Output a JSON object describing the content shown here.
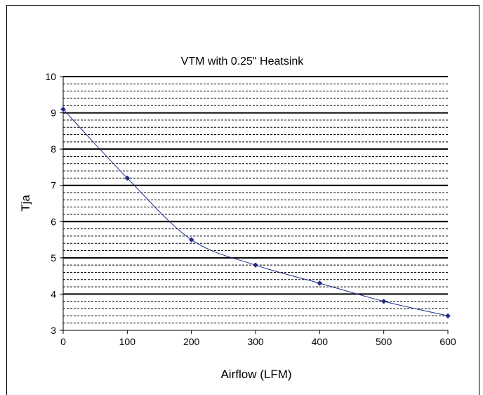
{
  "chart_data": {
    "type": "line",
    "title": "VTM with 0.25\" Heatsink",
    "xlabel": "Airflow (LFM)",
    "ylabel": "Tja",
    "xlim": [
      0,
      600
    ],
    "ylim": [
      3,
      10
    ],
    "xticks": [
      0,
      100,
      200,
      300,
      400,
      500,
      600
    ],
    "yticks": [
      3,
      4,
      5,
      6,
      7,
      8,
      9,
      10
    ],
    "major_grid": true,
    "minor_grid": true,
    "minor_grid_step": 0.2,
    "legend": "none",
    "smoothed": true,
    "series": [
      {
        "x": [
          0,
          100,
          200,
          300,
          400,
          500,
          600
        ],
        "y": [
          9.1,
          7.2,
          5.5,
          4.8,
          4.3,
          3.8,
          3.4
        ],
        "color": "#1f2a8c",
        "marker": "diamond"
      }
    ]
  }
}
